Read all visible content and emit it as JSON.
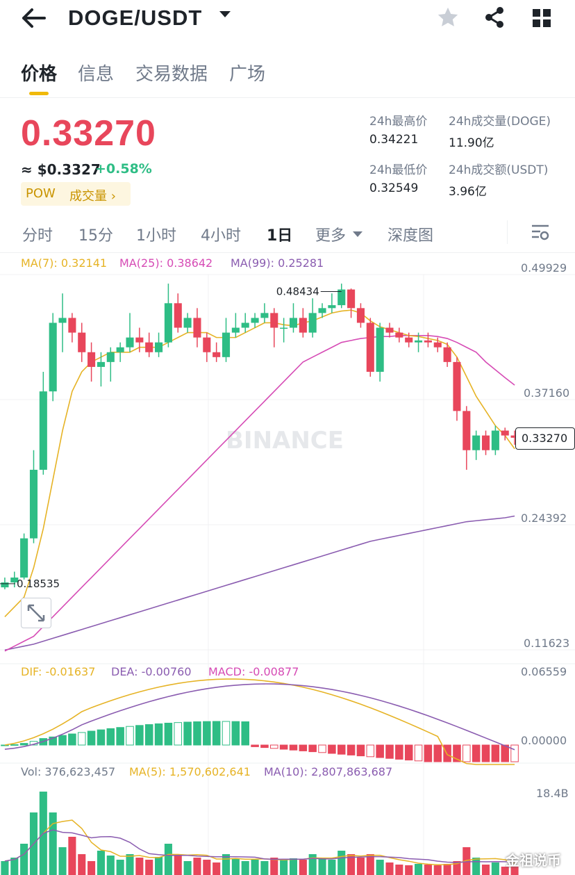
{
  "header": {
    "pair": "DOGE/USDT"
  },
  "tabs": [
    "价格",
    "信息",
    "交易数据",
    "广场"
  ],
  "ticker": {
    "price": "0.33270",
    "usd": "≈ $0.3327",
    "change": "+0.58%",
    "tag": "POW",
    "volume_link": "成交量 ›",
    "high_label": "24h最高价",
    "high": "0.34221",
    "vol_label": "24h成交量(DOGE)",
    "vol": "11.90亿",
    "low_label": "24h最低价",
    "low": "0.32549",
    "amt_label": "24h成交额(USDT)",
    "amt": "3.96亿"
  },
  "intervals": [
    "分时",
    "15分",
    "1小时",
    "4小时",
    "1日",
    "更多",
    "深度图"
  ],
  "ma_legend": {
    "ma7": "MA(7): 0.32141",
    "ma25": "MA(25): 0.38642",
    "ma99": "MA(99): 0.25281"
  },
  "price_axis": [
    "0.49929",
    "0.37160",
    "0.24392",
    "0.11623"
  ],
  "current_price_tag": "0.33270",
  "high_marker": "0.48434",
  "low_marker": "0.18535",
  "watermark": "BINANCE",
  "macd_legend": {
    "dif": "DIF: -0.01637",
    "dea": "DEA: -0.00760",
    "macd": "MACD: -0.00877"
  },
  "macd_axis": [
    "0.06559",
    "0.00000"
  ],
  "vol_legend": {
    "vol": "Vol: 376,623,457",
    "ma5": "MA(5): 1,570,602,641",
    "ma10": "MA(10): 2,807,863,687"
  },
  "vol_axis": "18.4B",
  "corner_watermark": "金祖说币",
  "colors": {
    "up": "#2ebd85",
    "down": "#e8465b",
    "ma7": "#e6b325",
    "ma25": "#d64bb5",
    "ma99": "#8a5cb0",
    "accent": "#f0b90b"
  },
  "icons": [
    "back-arrow-icon",
    "dropdown-caret-icon",
    "star-icon",
    "share-icon",
    "grid-icon",
    "chart-settings-icon",
    "expand-icon"
  ],
  "chart_data": {
    "type": "candlestick",
    "interval": "1日",
    "ylim": [
      0.11623,
      0.49929
    ],
    "candles": [
      [
        0.18,
        0.185,
        0.19,
        0.178
      ],
      [
        0.185,
        0.19,
        0.196,
        0.18
      ],
      [
        0.19,
        0.23,
        0.235,
        0.188
      ],
      [
        0.23,
        0.3,
        0.32,
        0.225
      ],
      [
        0.3,
        0.38,
        0.4,
        0.295
      ],
      [
        0.38,
        0.45,
        0.46,
        0.37
      ],
      [
        0.45,
        0.455,
        0.48,
        0.42
      ],
      [
        0.455,
        0.44,
        0.46,
        0.43
      ],
      [
        0.44,
        0.42,
        0.45,
        0.41
      ],
      [
        0.42,
        0.405,
        0.43,
        0.39
      ],
      [
        0.405,
        0.41,
        0.42,
        0.385
      ],
      [
        0.41,
        0.42,
        0.425,
        0.39
      ],
      [
        0.42,
        0.425,
        0.43,
        0.41
      ],
      [
        0.425,
        0.435,
        0.46,
        0.42
      ],
      [
        0.435,
        0.43,
        0.445,
        0.42
      ],
      [
        0.43,
        0.42,
        0.44,
        0.415
      ],
      [
        0.42,
        0.43,
        0.44,
        0.415
      ],
      [
        0.43,
        0.47,
        0.49,
        0.425
      ],
      [
        0.47,
        0.445,
        0.48,
        0.44
      ],
      [
        0.445,
        0.455,
        0.46,
        0.44
      ],
      [
        0.455,
        0.435,
        0.465,
        0.425
      ],
      [
        0.435,
        0.42,
        0.44,
        0.41
      ],
      [
        0.42,
        0.415,
        0.43,
        0.41
      ],
      [
        0.415,
        0.44,
        0.455,
        0.41
      ],
      [
        0.44,
        0.445,
        0.46,
        0.435
      ],
      [
        0.445,
        0.45,
        0.46,
        0.44
      ],
      [
        0.45,
        0.455,
        0.46,
        0.445
      ],
      [
        0.455,
        0.46,
        0.47,
        0.45
      ],
      [
        0.46,
        0.445,
        0.465,
        0.425
      ],
      [
        0.445,
        0.445,
        0.455,
        0.43
      ],
      [
        0.445,
        0.455,
        0.47,
        0.44
      ],
      [
        0.455,
        0.44,
        0.465,
        0.435
      ],
      [
        0.44,
        0.46,
        0.475,
        0.435
      ],
      [
        0.46,
        0.465,
        0.47,
        0.455
      ],
      [
        0.465,
        0.468,
        0.48,
        0.46
      ],
      [
        0.468,
        0.484,
        0.49,
        0.465
      ],
      [
        0.484,
        0.465,
        0.485,
        0.455
      ],
      [
        0.465,
        0.45,
        0.47,
        0.445
      ],
      [
        0.45,
        0.4,
        0.455,
        0.395
      ],
      [
        0.4,
        0.445,
        0.45,
        0.39
      ],
      [
        0.445,
        0.44,
        0.45,
        0.435
      ],
      [
        0.44,
        0.435,
        0.445,
        0.43
      ],
      [
        0.435,
        0.43,
        0.44,
        0.425
      ],
      [
        0.43,
        0.432,
        0.44,
        0.42
      ],
      [
        0.432,
        0.43,
        0.44,
        0.425
      ],
      [
        0.43,
        0.425,
        0.435,
        0.42
      ],
      [
        0.425,
        0.41,
        0.43,
        0.405
      ],
      [
        0.41,
        0.36,
        0.415,
        0.35
      ],
      [
        0.36,
        0.32,
        0.365,
        0.3
      ],
      [
        0.32,
        0.335,
        0.34,
        0.31
      ],
      [
        0.335,
        0.32,
        0.34,
        0.315
      ],
      [
        0.32,
        0.34,
        0.345,
        0.315
      ],
      [
        0.34,
        0.335,
        0.343,
        0.33
      ],
      [
        0.335,
        0.3327,
        0.34,
        0.3255
      ]
    ],
    "ma7": [
      0.15,
      0.16,
      0.17,
      0.2,
      0.24,
      0.29,
      0.34,
      0.38,
      0.4,
      0.41,
      0.415,
      0.42,
      0.42,
      0.42,
      0.425,
      0.425,
      0.425,
      0.43,
      0.435,
      0.44,
      0.44,
      0.44,
      0.435,
      0.435,
      0.435,
      0.44,
      0.445,
      0.45,
      0.45,
      0.448,
      0.447,
      0.45,
      0.452,
      0.456,
      0.46,
      0.462,
      0.463,
      0.46,
      0.452,
      0.446,
      0.443,
      0.44,
      0.437,
      0.436,
      0.434,
      0.432,
      0.428,
      0.415,
      0.395,
      0.375,
      0.36,
      0.345,
      0.335,
      0.3214
    ],
    "ma25": [
      0.115,
      0.12,
      0.125,
      0.13,
      0.14,
      0.15,
      0.16,
      0.17,
      0.18,
      0.19,
      0.2,
      0.21,
      0.22,
      0.23,
      0.24,
      0.25,
      0.26,
      0.27,
      0.28,
      0.29,
      0.3,
      0.31,
      0.32,
      0.33,
      0.34,
      0.35,
      0.36,
      0.37,
      0.38,
      0.39,
      0.4,
      0.41,
      0.415,
      0.42,
      0.425,
      0.43,
      0.432,
      0.434,
      0.435,
      0.436,
      0.436,
      0.437,
      0.437,
      0.437,
      0.437,
      0.436,
      0.434,
      0.43,
      0.425,
      0.42,
      0.41,
      0.402,
      0.394,
      0.3864
    ],
    "ma99": [
      0.116,
      0.118,
      0.12,
      0.122,
      0.125,
      0.128,
      0.131,
      0.134,
      0.137,
      0.14,
      0.143,
      0.146,
      0.149,
      0.152,
      0.155,
      0.158,
      0.161,
      0.164,
      0.167,
      0.17,
      0.173,
      0.176,
      0.179,
      0.182,
      0.185,
      0.188,
      0.191,
      0.194,
      0.197,
      0.2,
      0.203,
      0.206,
      0.209,
      0.212,
      0.215,
      0.218,
      0.221,
      0.224,
      0.227,
      0.229,
      0.231,
      0.233,
      0.235,
      0.237,
      0.239,
      0.241,
      0.243,
      0.245,
      0.247,
      0.248,
      0.249,
      0.25,
      0.251,
      0.2528
    ]
  }
}
